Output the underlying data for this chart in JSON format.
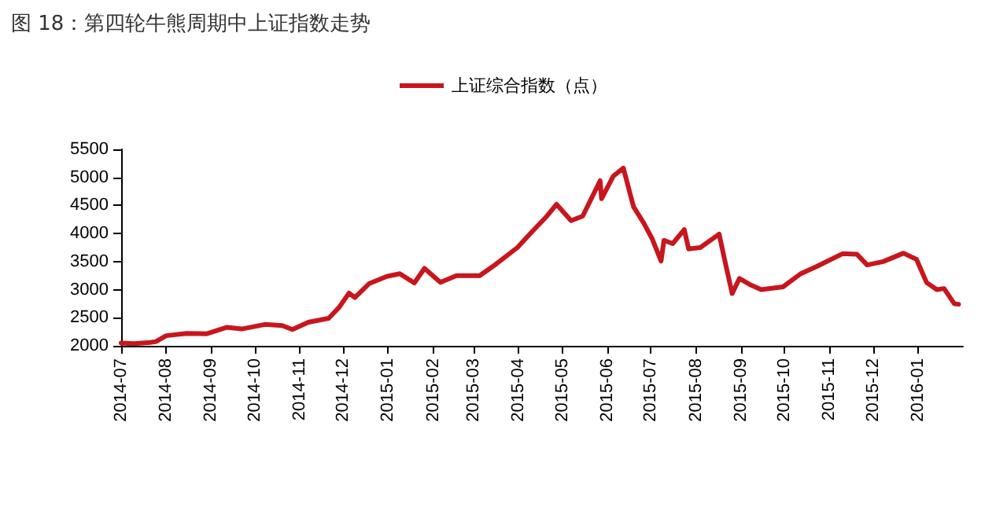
{
  "chart_data": {
    "type": "line",
    "title": "图 18：第四轮牛熊周期中上证指数走势",
    "x": [
      "2014-07-01",
      "2014-07-10",
      "2014-07-21",
      "2014-07-25",
      "2014-08-01",
      "2014-08-15",
      "2014-08-29",
      "2014-09-12",
      "2014-09-22",
      "2014-10-08",
      "2014-10-20",
      "2014-10-27",
      "2014-11-07",
      "2014-11-21",
      "2014-11-28",
      "2014-12-05",
      "2014-12-09",
      "2014-12-19",
      "2014-12-31",
      "2015-01-09",
      "2015-01-19",
      "2015-01-26",
      "2015-02-06",
      "2015-02-17",
      "2015-03-05",
      "2015-03-16",
      "2015-03-31",
      "2015-04-10",
      "2015-04-20",
      "2015-04-27",
      "2015-05-07",
      "2015-05-15",
      "2015-05-27",
      "2015-05-28",
      "2015-06-05",
      "2015-06-12",
      "2015-06-19",
      "2015-06-26",
      "2015-07-02",
      "2015-07-08",
      "2015-07-10",
      "2015-07-16",
      "2015-07-24",
      "2015-07-27",
      "2015-08-04",
      "2015-08-17",
      "2015-08-21",
      "2015-08-26",
      "2015-08-31",
      "2015-09-08",
      "2015-09-15",
      "2015-09-30",
      "2015-10-12",
      "2015-10-23",
      "2015-11-10",
      "2015-11-20",
      "2015-11-27",
      "2015-12-08",
      "2015-12-22",
      "2015-12-31",
      "2016-01-07",
      "2016-01-14",
      "2016-01-19",
      "2016-01-26",
      "2016-01-29"
    ],
    "series": [
      {
        "name": "上证综合指数（点）",
        "color": "#c8161d",
        "values": [
          2050,
          2040,
          2060,
          2075,
          2180,
          2220,
          2215,
          2330,
          2300,
          2380,
          2360,
          2290,
          2420,
          2490,
          2680,
          2940,
          2860,
          3110,
          3235,
          3285,
          3120,
          3380,
          3130,
          3250,
          3250,
          3450,
          3750,
          4030,
          4300,
          4520,
          4230,
          4310,
          4940,
          4620,
          5020,
          5166,
          4480,
          4190,
          3900,
          3510,
          3880,
          3820,
          4070,
          3725,
          3750,
          3990,
          3510,
          2930,
          3200,
          3080,
          3000,
          3050,
          3280,
          3410,
          3640,
          3630,
          3440,
          3500,
          3650,
          3540,
          3125,
          3000,
          3020,
          2750,
          2740
        ]
      }
    ],
    "xlim": [
      "2014-07-01",
      "2016-02-01"
    ],
    "xticks": [
      "2014-07",
      "2014-08",
      "2014-09",
      "2014-10",
      "2014-11",
      "2014-12",
      "2015-01",
      "2015-02",
      "2015-03",
      "2015-04",
      "2015-05",
      "2015-06",
      "2015-07",
      "2015-08",
      "2015-09",
      "2015-10",
      "2015-11",
      "2015-12",
      "2016-01"
    ],
    "ylim": [
      2000,
      5500
    ],
    "yticks": [
      2000,
      2500,
      3000,
      3500,
      4000,
      4500,
      5000,
      5500
    ],
    "legend": "top",
    "grid": false,
    "marker": "none",
    "line_style": "solid"
  }
}
